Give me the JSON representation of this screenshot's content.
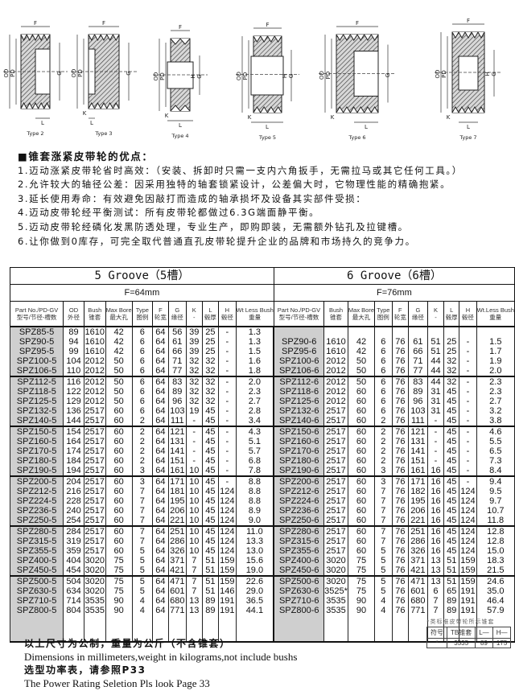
{
  "drawings": [
    {
      "label": "Type 2",
      "dims": [
        "F",
        "OD",
        "PD",
        "G",
        "L"
      ]
    },
    {
      "label": "Type 3",
      "dims": [
        "F",
        "OD",
        "PD",
        "G",
        "L",
        "K"
      ]
    },
    {
      "label": "Type 4",
      "dims": [
        "F",
        "OD",
        "PD",
        "G",
        "H",
        "L",
        "K"
      ]
    },
    {
      "label": "Type 5",
      "dims": [
        "F",
        "OD",
        "PD",
        "G",
        "H",
        "L",
        "K"
      ]
    },
    {
      "label": "Type 6",
      "dims": [
        "F",
        "OD",
        "PD",
        "G",
        "L",
        "K"
      ]
    },
    {
      "label": "Type 7",
      "dims": [
        "F",
        "OD",
        "PD",
        "G",
        "H",
        "L",
        "K"
      ]
    }
  ],
  "advantages": {
    "heading": "■锥套涨紧皮带轮的优点：",
    "items": [
      "1.迈动涨紧皮带轮省时高效：（安装、拆卸时只需一支内六角扳手，无需拉马或其它任何工具。）",
      "2.允许较大的轴径公差：因采用独特的轴套锁紧设计，公差偏大时，它物理性能的精确抱紧。",
      "3.延长使用寿命：有效避免因敲打而造成的轴承损坏及设备其实部件受损：",
      "4.迈动皮带轮经平衡测试：所有皮带轮都做过6.3G端面静平衡。",
      "5.迈动皮带轮经磷化发黑防透处理，专业生产，即购即装，无需额外钻孔及拉键槽。",
      "6.让你做到0库存，可完全取代普通直孔皮带轮提升企业的品牌和市场持久的竞争力。"
    ]
  },
  "table": {
    "left": {
      "title": "5 Groove（5槽）",
      "f_value": "F=64mm",
      "headers": [
        [
          "Part No./PD-GV",
          "型号/节径-槽数"
        ],
        [
          "OD",
          "外径"
        ],
        [
          "Bush",
          "锥套"
        ],
        [
          "Max Bore",
          "最大孔"
        ],
        [
          "Type",
          "图例"
        ],
        [
          "F",
          "轮宽"
        ],
        [
          "G",
          "缘径"
        ],
        [
          "K",
          "-"
        ],
        [
          "L",
          "毂厚"
        ],
        [
          "H",
          "毂径"
        ],
        [
          "Wt Less Bush",
          "重量"
        ]
      ],
      "rows": [
        [
          "SPZ85-5",
          "89",
          "1610",
          "42",
          "6",
          "64",
          "56",
          "39",
          "25",
          "-",
          "1.3"
        ],
        [
          "SPZ90-5",
          "94",
          "1610",
          "42",
          "6",
          "64",
          "61",
          "39",
          "25",
          "-",
          "1.3"
        ],
        [
          "SPZ95-5",
          "99",
          "1610",
          "42",
          "6",
          "64",
          "66",
          "39",
          "25",
          "-",
          "1.5"
        ],
        [
          "SPZ100-5",
          "104",
          "2012",
          "50",
          "6",
          "64",
          "71",
          "32",
          "32",
          "-",
          "1.6"
        ],
        [
          "SPZ106-5",
          "110",
          "2012",
          "50",
          "6",
          "64",
          "77",
          "32",
          "32",
          "-",
          "1.8"
        ],
        [
          "SPZ112-5",
          "116",
          "2012",
          "50",
          "6",
          "64",
          "83",
          "32",
          "32",
          "-",
          "2.0"
        ],
        [
          "SPZ118-5",
          "122",
          "2012",
          "50",
          "6",
          "64",
          "89",
          "32",
          "32",
          "-",
          "2.3"
        ],
        [
          "SPZ125-5",
          "129",
          "2012",
          "50",
          "6",
          "64",
          "96",
          "32",
          "32",
          "-",
          "2.7"
        ],
        [
          "SPZ132-5",
          "136",
          "2517",
          "60",
          "6",
          "64",
          "103",
          "19",
          "45",
          "-",
          "2.8"
        ],
        [
          "SPZ140-5",
          "144",
          "2517",
          "60",
          "2",
          "64",
          "111",
          "-",
          "45",
          "-",
          "3.4"
        ],
        [
          "SPZ150-5",
          "154",
          "2517",
          "60",
          "2",
          "64",
          "121",
          "-",
          "45",
          "-",
          "4.3"
        ],
        [
          "SPZ160-5",
          "164",
          "2517",
          "60",
          "2",
          "64",
          "131",
          "-",
          "45",
          "-",
          "5.1"
        ],
        [
          "SPZ170-5",
          "174",
          "2517",
          "60",
          "2",
          "64",
          "141",
          "-",
          "45",
          "-",
          "5.7"
        ],
        [
          "SPZ180-5",
          "184",
          "2517",
          "60",
          "2",
          "64",
          "151",
          "-",
          "45",
          "-",
          "6.8"
        ],
        [
          "SPZ190-5",
          "194",
          "2517",
          "60",
          "3",
          "64",
          "161",
          "10",
          "45",
          "-",
          "7.8"
        ],
        [
          "SPZ200-5",
          "204",
          "2517",
          "60",
          "3",
          "64",
          "171",
          "10",
          "45",
          "-",
          "8.8"
        ],
        [
          "SPZ212-5",
          "216",
          "2517",
          "60",
          "7",
          "64",
          "181",
          "10",
          "45",
          "124",
          "8.8"
        ],
        [
          "SPZ224-5",
          "228",
          "2517",
          "60",
          "7",
          "64",
          "195",
          "10",
          "45",
          "124",
          "8.8"
        ],
        [
          "SPZ236-5",
          "240",
          "2517",
          "60",
          "7",
          "64",
          "206",
          "10",
          "45",
          "124",
          "8.9"
        ],
        [
          "SPZ250-5",
          "254",
          "2517",
          "60",
          "7",
          "64",
          "221",
          "10",
          "45",
          "124",
          "9.0"
        ],
        [
          "SPZ280-5",
          "284",
          "2517",
          "60",
          "7",
          "64",
          "251",
          "10",
          "45",
          "124",
          "11.0"
        ],
        [
          "SPZ315-5",
          "319",
          "2517",
          "60",
          "7",
          "64",
          "286",
          "10",
          "45",
          "124",
          "13.3"
        ],
        [
          "SPZ355-5",
          "359",
          "2517",
          "60",
          "5",
          "64",
          "326",
          "10",
          "45",
          "124",
          "13.0"
        ],
        [
          "SPZ400-5",
          "404",
          "3020",
          "75",
          "5",
          "64",
          "371",
          "7",
          "51",
          "159",
          "15.6"
        ],
        [
          "SPZ450-5",
          "454",
          "3020",
          "75",
          "5",
          "64",
          "421",
          "7",
          "51",
          "159",
          "19.0"
        ],
        [
          "SPZ500-5",
          "504",
          "3020",
          "75",
          "5",
          "64",
          "471",
          "7",
          "51",
          "159",
          "22.6"
        ],
        [
          "SPZ630-5",
          "634",
          "3020",
          "75",
          "5",
          "64",
          "601",
          "7",
          "51",
          "146",
          "29.0"
        ],
        [
          "SPZ710-5",
          "714",
          "3535",
          "90",
          "4",
          "64",
          "680",
          "13",
          "89",
          "191",
          "36.5"
        ],
        [
          "SPZ800-5",
          "804",
          "3535",
          "90",
          "4",
          "64",
          "771",
          "13",
          "89",
          "191",
          "44.1"
        ]
      ]
    },
    "right": {
      "title": "6 Groove（6槽）",
      "f_value": "F=76mm",
      "headers": [
        [
          "Part No./PD-GV",
          "型号/节径-槽数"
        ],
        [
          "Bush",
          "锥套"
        ],
        [
          "Max Bore",
          "最大孔"
        ],
        [
          "Type",
          "图例"
        ],
        [
          "F",
          "轮宽"
        ],
        [
          "G",
          "缘径"
        ],
        [
          "K",
          "-"
        ],
        [
          "L",
          "毂厚"
        ],
        [
          "H",
          "毂径"
        ],
        [
          "Wt.Less Bush",
          "重量"
        ]
      ],
      "rows": [
        null,
        [
          "SPZ90-6",
          "1610",
          "42",
          "6",
          "76",
          "61",
          "51",
          "25",
          "-",
          "1.5"
        ],
        [
          "SPZ95-6",
          "1610",
          "42",
          "6",
          "76",
          "66",
          "51",
          "25",
          "-",
          "1.7"
        ],
        [
          "SPZ100-6",
          "2012",
          "50",
          "6",
          "76",
          "71",
          "44",
          "32",
          "-",
          "1.9"
        ],
        [
          "SPZ106-6",
          "2012",
          "50",
          "6",
          "76",
          "77",
          "44",
          "32",
          "-",
          "2.0"
        ],
        [
          "SPZ112-6",
          "2012",
          "50",
          "6",
          "76",
          "83",
          "44",
          "32",
          "-",
          "2.3"
        ],
        [
          "SPZ118-6",
          "2012",
          "60",
          "6",
          "76",
          "89",
          "31",
          "45",
          "-",
          "2.3"
        ],
        [
          "SPZ125-6",
          "2012",
          "60",
          "6",
          "76",
          "96",
          "31",
          "45",
          "-",
          "2.7"
        ],
        [
          "SPZ132-6",
          "2517",
          "60",
          "6",
          "76",
          "103",
          "31",
          "45",
          "-",
          "3.2"
        ],
        [
          "SPZ140-6",
          "2517",
          "60",
          "2",
          "76",
          "111",
          "-",
          "45",
          "-",
          "3.8"
        ],
        [
          "SPZ150-6",
          "2517",
          "60",
          "2",
          "76",
          "121",
          "-",
          "45",
          "-",
          "4.6"
        ],
        [
          "SPZ160-6",
          "2517",
          "60",
          "2",
          "76",
          "131",
          "-",
          "45",
          "-",
          "5.5"
        ],
        [
          "SPZ170-6",
          "2517",
          "60",
          "2",
          "76",
          "141",
          "-",
          "45",
          "-",
          "6.5"
        ],
        [
          "SPZ180-6",
          "2517",
          "60",
          "2",
          "76",
          "151",
          "-",
          "45",
          "-",
          "7.3"
        ],
        [
          "SPZ190-6",
          "2517",
          "60",
          "3",
          "76",
          "161",
          "16",
          "45",
          "-",
          "8.4"
        ],
        [
          "SPZ200-6",
          "2517",
          "60",
          "3",
          "76",
          "171",
          "16",
          "45",
          "-",
          "9.4"
        ],
        [
          "SPZ212-6",
          "2517",
          "60",
          "7",
          "76",
          "182",
          "16",
          "45",
          "124",
          "9.5"
        ],
        [
          "SPZ224-6",
          "2517",
          "60",
          "7",
          "76",
          "195",
          "16",
          "45",
          "124",
          "9.7"
        ],
        [
          "SPZ236-6",
          "2517",
          "60",
          "7",
          "76",
          "206",
          "16",
          "45",
          "124",
          "10.7"
        ],
        [
          "SPZ250-6",
          "2517",
          "60",
          "7",
          "76",
          "221",
          "16",
          "45",
          "124",
          "11.8"
        ],
        [
          "SPZ280-6",
          "2517",
          "60",
          "7",
          "76",
          "251",
          "16",
          "45",
          "124",
          "12.8"
        ],
        [
          "SPZ315-6",
          "2517",
          "60",
          "7",
          "76",
          "286",
          "16",
          "45",
          "124",
          "12.8"
        ],
        [
          "SPZ355-6",
          "2517",
          "60",
          "5",
          "76",
          "326",
          "16",
          "45",
          "124",
          "15.0"
        ],
        [
          "SPZ400-6",
          "3020",
          "75",
          "5",
          "76",
          "371",
          "13",
          "51",
          "159",
          "18.3"
        ],
        [
          "SPZ450-6",
          "3020",
          "75",
          "5",
          "76",
          "421",
          "13",
          "51",
          "159",
          "21.5"
        ],
        [
          "SPZ500-6",
          "3020",
          "75",
          "5",
          "76",
          "471",
          "13",
          "51",
          "159",
          "24.6"
        ],
        [
          "SPZ630-6",
          "3525*",
          "75",
          "5",
          "76",
          "601",
          "6",
          "65",
          "191",
          "35.0"
        ],
        [
          "SPZ710-6",
          "3535",
          "90",
          "4",
          "76",
          "680",
          "7",
          "89",
          "191",
          "46.4"
        ],
        [
          "SPZ800-6",
          "3535",
          "90",
          "4",
          "76",
          "771",
          "7",
          "89",
          "191",
          "57.9"
        ]
      ]
    }
  },
  "notes": {
    "line1": "以上尺寸为公制，重量为公斤（不含锥套）",
    "line2": "Dimensions in millimeters,weight in kilograms,not include bushs",
    "line3": "选型功率表，请参照P33",
    "line4": "The Power Rating Seletion Pls look Page 33"
  },
  "mini_table": {
    "caption": "*类标准皮带轮所示锥套",
    "headers": [
      "符号",
      "TB锥套",
      "L—",
      "H—"
    ],
    "row": [
      "*",
      "3535",
      "89",
      "175"
    ]
  }
}
